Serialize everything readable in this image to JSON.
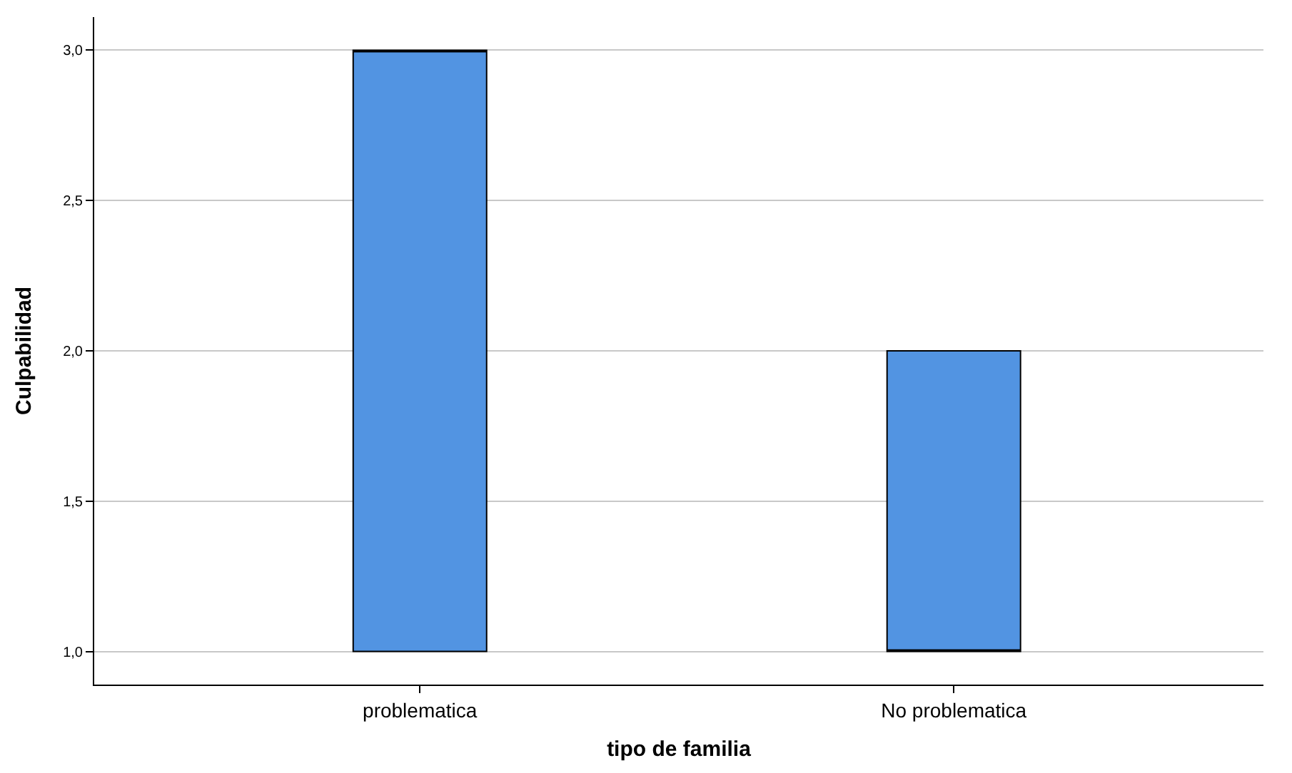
{
  "chart_data": {
    "type": "box",
    "xlabel": "tipo de familia",
    "ylabel": "Culpabilidad",
    "categories": [
      "problematica",
      "No problematica"
    ],
    "boxes": [
      {
        "low": 1,
        "q1": 1,
        "median": 3,
        "q3": 3,
        "high": 3
      },
      {
        "low": 1,
        "q1": 1,
        "median": 1,
        "q3": 2,
        "high": 2
      }
    ],
    "color": "#5294e2",
    "ylim": [
      0.89,
      3.11
    ],
    "yticks": [
      {
        "value": 1,
        "label": "1,0"
      },
      {
        "value": 1.5,
        "label": "1,5"
      },
      {
        "value": 2,
        "label": "2,0"
      },
      {
        "value": 2.5,
        "label": "2,5"
      },
      {
        "value": 3,
        "label": "3,0"
      }
    ],
    "grid": "y"
  }
}
